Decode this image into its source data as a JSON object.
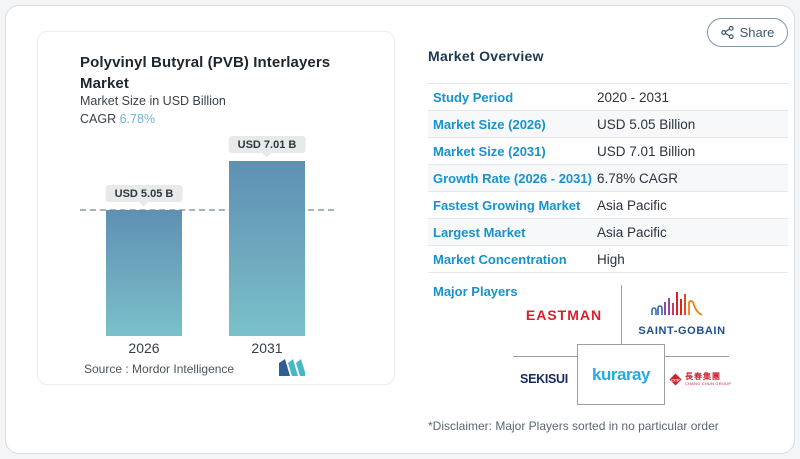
{
  "share": {
    "label": "Share"
  },
  "left_card": {
    "title": "Polyvinyl Butyral (PVB) Interlayers Market",
    "subtitle": "Market Size in USD Billion",
    "cagr_label": "CAGR",
    "cagr_value": "6.78%",
    "source_label": "Source :",
    "source_value": "Mordor Intelligence"
  },
  "chart_data": {
    "type": "bar",
    "categories": [
      "2026",
      "2031"
    ],
    "values": [
      5.05,
      7.01
    ],
    "value_labels": [
      "USD 5.05 B",
      "USD 7.01 B"
    ],
    "title": "Polyvinyl Butyral (PVB) Interlayers Market",
    "ylabel": "Market Size in USD Billion",
    "cagr": "6.78%",
    "ylim": [
      0,
      7.01
    ],
    "reference_line_at": 5.05,
    "bar_gradient": [
      "#5f90b3",
      "#7ac1ca"
    ],
    "legend": "none",
    "grid": "off"
  },
  "overview": {
    "heading": "Market Overview",
    "rows": [
      {
        "label": "Study Period",
        "value": "2020 - 2031"
      },
      {
        "label": "Market Size (2026)",
        "value": "USD 5.05 Billion"
      },
      {
        "label": "Market Size (2031)",
        "value": "USD 7.01 Billion"
      },
      {
        "label": "Growth Rate (2026 - 2031)",
        "value": "6.78% CAGR"
      },
      {
        "label": "Fastest Growing Market",
        "value": "Asia Pacific"
      },
      {
        "label": "Largest Market",
        "value": "Asia Pacific"
      },
      {
        "label": "Market Concentration",
        "value": "High"
      }
    ],
    "major_players_label": "Major Players",
    "players": {
      "eastman": "EASTMAN",
      "saint_gobain": "SAINT-GOBAIN",
      "sekisui": "SEKISUI",
      "kuraray": "kuraray",
      "ccp_cn": "長春集團",
      "ccp_en": "CHANG CHUN GROUP"
    }
  },
  "disclaimer": "*Disclaimer: Major Players sorted in no particular order",
  "colors": {
    "accent_blue": "#1793cc",
    "heading_navy": "#1c3850",
    "cagr_light_blue": "#6fb3d6",
    "eastman_red": "#d6212e",
    "saint_gobain_blue": "#1d4f91",
    "sekisui_navy": "#1a2a63",
    "kuraray_blue": "#29a9e0",
    "ccp_red": "#cf2030",
    "bar_top": "#5f90b3",
    "bar_bottom": "#7ac1ca"
  }
}
